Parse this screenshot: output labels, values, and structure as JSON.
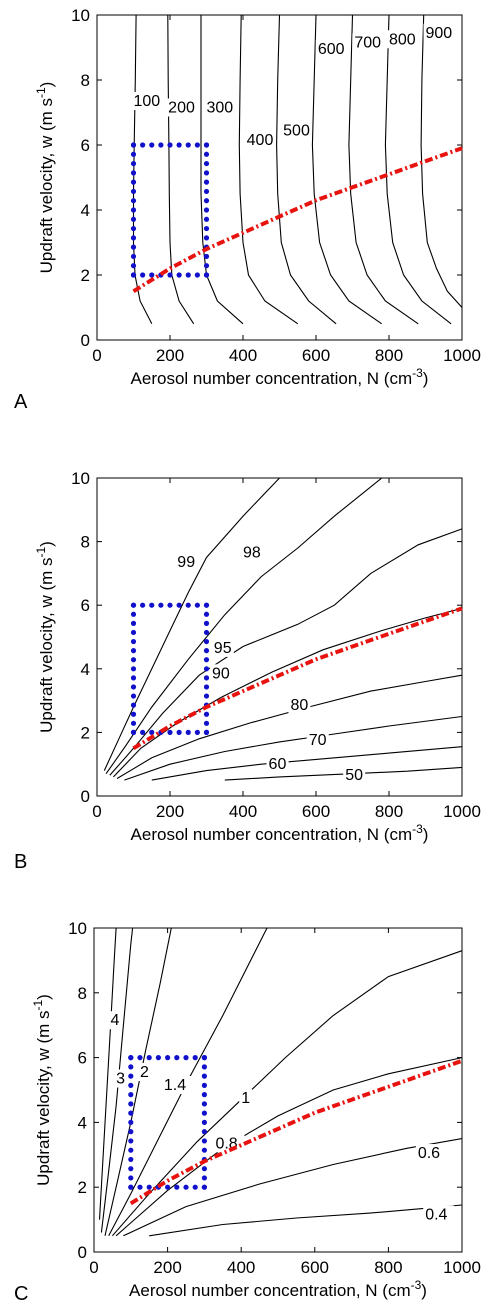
{
  "chart_data": [
    {
      "type": "line",
      "panel": "A",
      "xlabel": "Aerosol number concentration, N (cm",
      "xlabel_sup": "-3",
      "xlabel_end": ")",
      "ylabel": "Updraft velocity, w (m s",
      "ylabel_sup": "-1",
      "ylabel_end": ")",
      "xlim": [
        0,
        1000
      ],
      "ylim": [
        0,
        10
      ],
      "x_ticks": [
        0,
        200,
        400,
        600,
        800,
        1000
      ],
      "y_ticks": [
        0,
        2,
        4,
        6,
        8,
        10
      ],
      "series": [
        {
          "name": "100",
          "points": [
            [
              150,
              0.5
            ],
            [
              118,
              1.2
            ],
            [
              104,
              2
            ],
            [
              100,
              3
            ],
            [
              100,
              4.5
            ],
            [
              102,
              6
            ],
            [
              105,
              8
            ],
            [
              107,
              10
            ]
          ],
          "label_at": [
            100,
            7.2
          ]
        },
        {
          "name": "200",
          "points": [
            [
              265,
              0.5
            ],
            [
              225,
              1.2
            ],
            [
              205,
              2
            ],
            [
              200,
              3
            ],
            [
              198,
              4.5
            ],
            [
              197,
              6
            ],
            [
              195,
              8
            ],
            [
              194,
              10
            ]
          ],
          "label_at": [
            195,
            7.0
          ]
        },
        {
          "name": "300",
          "points": [
            [
              400,
              0.5
            ],
            [
              330,
              1.2
            ],
            [
              300,
              2
            ],
            [
              290,
              3
            ],
            [
              285,
              4.5
            ],
            [
              285,
              6
            ],
            [
              285,
              8
            ],
            [
              285,
              10
            ]
          ],
          "label_at": [
            300,
            7.0
          ]
        },
        {
          "name": "400",
          "points": [
            [
              550,
              0.5
            ],
            [
              460,
              1.2
            ],
            [
              415,
              2
            ],
            [
              400,
              3
            ],
            [
              392,
              4.5
            ],
            [
              390,
              6
            ],
            [
              392,
              8
            ],
            [
              395,
              10
            ]
          ],
          "label_at": [
            410,
            6.0
          ]
        },
        {
          "name": "500",
          "points": [
            [
              655,
              0.5
            ],
            [
              580,
              1.2
            ],
            [
              530,
              2
            ],
            [
              505,
              3
            ],
            [
              495,
              4.5
            ],
            [
              492,
              6
            ],
            [
              495,
              8
            ],
            [
              500,
              10
            ]
          ],
          "label_at": [
            510,
            6.3
          ]
        },
        {
          "name": "600",
          "points": [
            [
              780,
              0.5
            ],
            [
              690,
              1.2
            ],
            [
              640,
              2
            ],
            [
              610,
              3
            ],
            [
              595,
              4.5
            ],
            [
              590,
              6
            ],
            [
              595,
              8
            ],
            [
              600,
              10
            ]
          ],
          "label_at": [
            605,
            8.8
          ]
        },
        {
          "name": "700",
          "points": [
            [
              880,
              0.5
            ],
            [
              790,
              1.2
            ],
            [
              740,
              2
            ],
            [
              710,
              3
            ],
            [
              695,
              4.5
            ],
            [
              690,
              6
            ],
            [
              695,
              8
            ],
            [
              700,
              10
            ]
          ],
          "label_at": [
            705,
            9.0
          ]
        },
        {
          "name": "800",
          "points": [
            [
              970,
              0.5
            ],
            [
              890,
              1.2
            ],
            [
              840,
              2
            ],
            [
              810,
              3
            ],
            [
              795,
              4.5
            ],
            [
              790,
              6
            ],
            [
              795,
              8
            ],
            [
              800,
              10
            ]
          ],
          "label_at": [
            800,
            9.1
          ]
        },
        {
          "name": "900",
          "points": [
            [
              1000,
              1.0
            ],
            [
              960,
              1.5
            ],
            [
              930,
              2.2
            ],
            [
              905,
              3
            ],
            [
              892,
              4.5
            ],
            [
              888,
              6
            ],
            [
              890,
              8
            ],
            [
              895,
              10
            ]
          ],
          "label_at": [
            900,
            9.3
          ]
        }
      ],
      "optimal_curve": [
        [
          100,
          1.5
        ],
        [
          200,
          2.2
        ],
        [
          300,
          2.8
        ],
        [
          400,
          3.3
        ],
        [
          500,
          3.8
        ],
        [
          600,
          4.3
        ],
        [
          700,
          4.7
        ],
        [
          800,
          5.1
        ],
        [
          900,
          5.5
        ],
        [
          1000,
          5.9
        ]
      ],
      "box": {
        "x": [
          100,
          300
        ],
        "y": [
          2,
          6
        ]
      },
      "contour_labels_enabled": true
    },
    {
      "type": "line",
      "panel": "B",
      "xlabel": "Aerosol number concentration, N (cm",
      "xlabel_sup": "-3",
      "xlabel_end": ")",
      "ylabel": "Updraft velocity, w (m s",
      "ylabel_sup": "-1",
      "ylabel_end": ")",
      "xlim": [
        0,
        1000
      ],
      "ylim": [
        0,
        10
      ],
      "x_ticks": [
        0,
        200,
        400,
        600,
        800,
        1000
      ],
      "y_ticks": [
        0,
        2,
        4,
        6,
        8,
        10
      ],
      "series": [
        {
          "name": "99",
          "points": [
            [
              20,
              0.8
            ],
            [
              60,
              1.8
            ],
            [
              100,
              2.8
            ],
            [
              150,
              4
            ],
            [
              200,
              5.2
            ],
            [
              250,
              6.4
            ],
            [
              300,
              7.5
            ],
            [
              400,
              8.8
            ],
            [
              500,
              10
            ]
          ],
          "label_at": [
            220,
            7.2
          ]
        },
        {
          "name": "98",
          "points": [
            [
              25,
              0.7
            ],
            [
              80,
              1.6
            ],
            [
              150,
              2.8
            ],
            [
              250,
              4.3
            ],
            [
              350,
              5.7
            ],
            [
              450,
              6.9
            ],
            [
              550,
              7.8
            ],
            [
              650,
              8.8
            ],
            [
              780,
              10
            ]
          ],
          "label_at": [
            400,
            7.5
          ]
        },
        {
          "name": "95",
          "points": [
            [
              35,
              0.65
            ],
            [
              100,
              1.5
            ],
            [
              180,
              2.6
            ],
            [
              280,
              3.8
            ],
            [
              400,
              4.7
            ],
            [
              550,
              5.4
            ],
            [
              650,
              6
            ],
            [
              750,
              7
            ],
            [
              880,
              7.9
            ],
            [
              1000,
              8.4
            ]
          ],
          "label_at": [
            320,
            4.5
          ]
        },
        {
          "name": "90",
          "points": [
            [
              45,
              0.6
            ],
            [
              120,
              1.5
            ],
            [
              220,
              2.3
            ],
            [
              340,
              3.1
            ],
            [
              480,
              3.9
            ],
            [
              620,
              4.6
            ],
            [
              780,
              5.2
            ],
            [
              900,
              5.6
            ],
            [
              1000,
              5.9
            ]
          ],
          "label_at": [
            315,
            3.7
          ]
        },
        {
          "name": "80",
          "points": [
            [
              55,
              0.55
            ],
            [
              150,
              1.2
            ],
            [
              280,
              1.8
            ],
            [
              420,
              2.3
            ],
            [
              580,
              2.8
            ],
            [
              750,
              3.3
            ],
            [
              900,
              3.6
            ],
            [
              1000,
              3.8
            ]
          ],
          "label_at": [
            530,
            2.7
          ]
        },
        {
          "name": "70",
          "points": [
            [
              75,
              0.5
            ],
            [
              200,
              1
            ],
            [
              350,
              1.4
            ],
            [
              500,
              1.7
            ],
            [
              650,
              1.95
            ],
            [
              800,
              2.2
            ],
            [
              1000,
              2.5
            ]
          ],
          "label_at": [
            580,
            1.6
          ]
        },
        {
          "name": "60",
          "points": [
            [
              150,
              0.5
            ],
            [
              300,
              0.8
            ],
            [
              450,
              1
            ],
            [
              600,
              1.15
            ],
            [
              800,
              1.35
            ],
            [
              1000,
              1.55
            ]
          ],
          "label_at": [
            470,
            0.85
          ]
        },
        {
          "name": "50",
          "points": [
            [
              350,
              0.5
            ],
            [
              500,
              0.6
            ],
            [
              700,
              0.7
            ],
            [
              850,
              0.78
            ],
            [
              1000,
              0.9
            ]
          ],
          "label_at": [
            680,
            0.5
          ]
        }
      ],
      "optimal_curve": [
        [
          100,
          1.5
        ],
        [
          200,
          2.2
        ],
        [
          300,
          2.8
        ],
        [
          400,
          3.3
        ],
        [
          500,
          3.8
        ],
        [
          600,
          4.3
        ],
        [
          700,
          4.7
        ],
        [
          800,
          5.1
        ],
        [
          900,
          5.5
        ],
        [
          1000,
          5.9
        ]
      ],
      "box": {
        "x": [
          100,
          300
        ],
        "y": [
          2,
          6
        ]
      }
    },
    {
      "type": "line",
      "panel": "C",
      "xlabel": "Aerosol number concentration, N (cm",
      "xlabel_sup": "-3",
      "xlabel_end": ")",
      "ylabel": "Updraft velocity, w (m s",
      "ylabel_sup": "-1",
      "ylabel_end": ")",
      "xlim": [
        0,
        1000
      ],
      "ylim": [
        0,
        10
      ],
      "x_ticks": [
        0,
        200,
        400,
        600,
        800,
        1000
      ],
      "y_ticks": [
        0,
        2,
        4,
        6,
        8,
        10
      ],
      "series": [
        {
          "name": "4",
          "points": [
            [
              15,
              1
            ],
            [
              25,
              3
            ],
            [
              35,
              5
            ],
            [
              45,
              7
            ],
            [
              55,
              9
            ],
            [
              60,
              10
            ]
          ],
          "label_at": [
            45,
            7.0
          ]
        },
        {
          "name": "3",
          "points": [
            [
              20,
              0.6
            ],
            [
              40,
              2.5
            ],
            [
              60,
              4.5
            ],
            [
              80,
              7
            ],
            [
              100,
              9.5
            ],
            [
              105,
              10
            ]
          ],
          "label_at": [
            60,
            5.2
          ]
        },
        {
          "name": "2",
          "points": [
            [
              30,
              0.5
            ],
            [
              60,
              2
            ],
            [
              100,
              4
            ],
            [
              140,
              6.2
            ],
            [
              180,
              8.3
            ],
            [
              210,
              10
            ]
          ],
          "label_at": [
            125,
            5.4
          ]
        },
        {
          "name": "1.4",
          "points": [
            [
              40,
              0.5
            ],
            [
              100,
              1.8
            ],
            [
              180,
              3.6
            ],
            [
              260,
              5.4
            ],
            [
              350,
              7.3
            ],
            [
              470,
              10
            ]
          ],
          "label_at": [
            190,
            5.0
          ]
        },
        {
          "name": "1",
          "points": [
            [
              50,
              0.5
            ],
            [
              150,
              1.8
            ],
            [
              280,
              3.4
            ],
            [
              400,
              4.7
            ],
            [
              520,
              6
            ],
            [
              650,
              7.3
            ],
            [
              800,
              8.5
            ],
            [
              1000,
              9.3
            ]
          ],
          "label_at": [
            400,
            4.6
          ]
        },
        {
          "name": "0.8",
          "points": [
            [
              60,
              0.5
            ],
            [
              200,
              1.9
            ],
            [
              350,
              3.2
            ],
            [
              500,
              4.2
            ],
            [
              650,
              5
            ],
            [
              800,
              5.5
            ],
            [
              1000,
              6.0
            ]
          ],
          "label_at": [
            330,
            3.2
          ]
        },
        {
          "name": "0.6",
          "points": [
            [
              80,
              0.5
            ],
            [
              250,
              1.4
            ],
            [
              450,
              2.1
            ],
            [
              650,
              2.7
            ],
            [
              850,
              3.2
            ],
            [
              1000,
              3.5
            ]
          ],
          "label_at": [
            880,
            2.9
          ]
        },
        {
          "name": "0.4",
          "points": [
            [
              150,
              0.5
            ],
            [
              350,
              0.85
            ],
            [
              550,
              1.05
            ],
            [
              750,
              1.2
            ],
            [
              900,
              1.35
            ],
            [
              1000,
              1.45
            ]
          ],
          "label_at": [
            900,
            1.0
          ]
        }
      ],
      "optimal_curve": [
        [
          100,
          1.5
        ],
        [
          200,
          2.2
        ],
        [
          300,
          2.8
        ],
        [
          400,
          3.3
        ],
        [
          500,
          3.8
        ],
        [
          600,
          4.3
        ],
        [
          700,
          4.7
        ],
        [
          800,
          5.1
        ],
        [
          900,
          5.5
        ],
        [
          1000,
          5.9
        ]
      ],
      "box": {
        "x": [
          100,
          300
        ],
        "y": [
          2,
          6
        ]
      }
    }
  ]
}
